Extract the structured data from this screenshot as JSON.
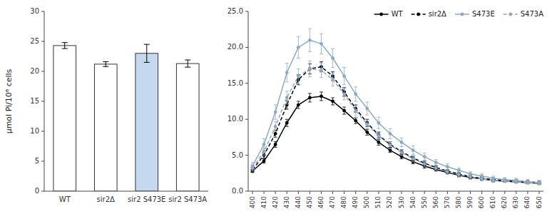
{
  "chart_data": [
    {
      "type": "bar",
      "categories": [
        "WT",
        "sir2Δ",
        "sir2 S473E",
        "sir2 S473A"
      ],
      "values": [
        24.3,
        21.2,
        23.0,
        21.3
      ],
      "errors": [
        0.5,
        0.4,
        1.5,
        0.6
      ],
      "colors": [
        "white",
        "white",
        "#c5d9ee",
        "white"
      ],
      "y_label": "μmol Pi/10⁸ cells",
      "ylim": [
        0,
        30
      ],
      "yticks": [
        0,
        5,
        10,
        15,
        20,
        25,
        30
      ],
      "grid": false
    },
    {
      "type": "line",
      "x": [
        400,
        410,
        420,
        430,
        440,
        450,
        460,
        470,
        480,
        490,
        500,
        510,
        520,
        530,
        540,
        550,
        560,
        570,
        580,
        590,
        600,
        610,
        620,
        630,
        640,
        650
      ],
      "xlim": [
        400,
        650
      ],
      "xticks": [
        400,
        410,
        420,
        430,
        440,
        450,
        460,
        470,
        480,
        490,
        500,
        510,
        520,
        530,
        540,
        550,
        560,
        570,
        580,
        590,
        600,
        610,
        620,
        630,
        640,
        650
      ],
      "ylim": [
        0.0,
        25.0
      ],
      "yticks": [
        {
          "value": 0.0,
          "label": "0.0"
        },
        {
          "value": 5.0,
          "label": "5.0"
        },
        {
          "value": 10.0,
          "label": "10.0"
        },
        {
          "value": 15.0,
          "label": "15.0"
        },
        {
          "value": 20.0,
          "label": "20.0"
        },
        {
          "value": 25.0,
          "label": "25.0"
        }
      ],
      "grid": false,
      "legend": "upper right",
      "series": [
        {
          "name": "WT",
          "color": "black",
          "line_style": "solid",
          "marker": "circle",
          "values": [
            2.8,
            4.2,
            6.5,
            9.5,
            12.0,
            13.0,
            13.2,
            12.5,
            11.2,
            9.8,
            8.2,
            6.8,
            5.7,
            4.8,
            4.1,
            3.5,
            3.0,
            2.6,
            2.2,
            1.9,
            1.7,
            1.5,
            1.4,
            1.3,
            1.2,
            1.1
          ],
          "errors": [
            0.2,
            0.3,
            0.4,
            0.5,
            0.5,
            0.6,
            0.6,
            0.5,
            0.5,
            0.4,
            0.4,
            0.4,
            0.3,
            0.3,
            0.3,
            0.3,
            0.2,
            0.2,
            0.2,
            0.2,
            0.2,
            0.2,
            0.1,
            0.1,
            0.1,
            0.1
          ]
        },
        {
          "name": "sir2Δ",
          "color": "black",
          "line_style": "dashed",
          "marker": "circle",
          "values": [
            3.0,
            5.0,
            8.0,
            12.0,
            15.5,
            17.0,
            17.3,
            16.0,
            13.8,
            11.5,
            9.5,
            7.8,
            6.5,
            5.5,
            4.6,
            3.9,
            3.3,
            2.8,
            2.4,
            2.0,
            1.8,
            1.6,
            1.5,
            1.4,
            1.3,
            1.2
          ],
          "errors": [
            0.3,
            0.4,
            0.5,
            0.6,
            0.7,
            0.7,
            0.7,
            0.6,
            0.6,
            0.5,
            0.5,
            0.4,
            0.4,
            0.3,
            0.3,
            0.3,
            0.3,
            0.2,
            0.2,
            0.2,
            0.2,
            0.2,
            0.2,
            0.2,
            0.2,
            0.2
          ]
        },
        {
          "name": "S473E",
          "color": "#8ca9c5",
          "line_style": "solid",
          "marker": "circle",
          "values": [
            3.5,
            6.5,
            11.0,
            16.5,
            20.0,
            21.0,
            20.5,
            18.5,
            16.0,
            13.5,
            11.5,
            9.5,
            8.0,
            6.8,
            5.7,
            4.8,
            4.0,
            3.4,
            2.9,
            2.4,
            2.1,
            1.8,
            1.6,
            1.5,
            1.3,
            1.2
          ],
          "errors": [
            0.5,
            0.8,
            1.0,
            1.3,
            1.5,
            1.6,
            1.4,
            1.3,
            1.2,
            1.0,
            0.9,
            0.8,
            0.7,
            0.6,
            0.6,
            0.5,
            0.4,
            0.4,
            0.3,
            0.3,
            0.3,
            0.3,
            0.3,
            0.3,
            0.3,
            0.3
          ]
        },
        {
          "name": "S473A",
          "color": "#8ca9c5",
          "line_style": "dashed",
          "marker": "circle",
          "values": [
            3.2,
            5.5,
            9.0,
            13.0,
            16.0,
            17.0,
            16.8,
            15.5,
            13.5,
            11.2,
            9.3,
            7.7,
            6.4,
            5.4,
            4.5,
            3.8,
            3.2,
            2.7,
            2.3,
            2.0,
            1.7,
            1.5,
            1.4,
            1.3,
            1.2,
            1.1
          ],
          "errors": [
            0.4,
            0.5,
            0.7,
            0.9,
            1.0,
            1.1,
            1.0,
            0.9,
            0.8,
            0.7,
            0.6,
            0.6,
            0.5,
            0.4,
            0.4,
            0.4,
            0.3,
            0.3,
            0.3,
            0.3,
            0.2,
            0.2,
            0.2,
            0.2,
            0.2,
            0.2
          ]
        }
      ]
    }
  ]
}
